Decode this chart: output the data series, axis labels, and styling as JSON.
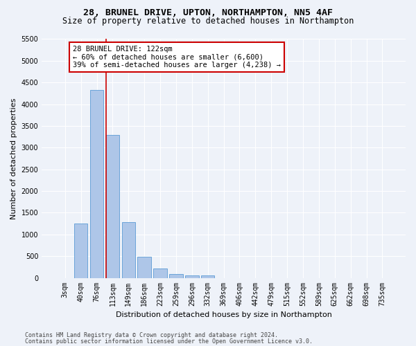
{
  "title_line1": "28, BRUNEL DRIVE, UPTON, NORTHAMPTON, NN5 4AF",
  "title_line2": "Size of property relative to detached houses in Northampton",
  "xlabel": "Distribution of detached houses by size in Northampton",
  "ylabel": "Number of detached properties",
  "bar_labels": [
    "3sqm",
    "40sqm",
    "76sqm",
    "113sqm",
    "149sqm",
    "186sqm",
    "223sqm",
    "259sqm",
    "296sqm",
    "332sqm",
    "369sqm",
    "406sqm",
    "442sqm",
    "479sqm",
    "515sqm",
    "552sqm",
    "589sqm",
    "625sqm",
    "662sqm",
    "698sqm",
    "735sqm"
  ],
  "bar_values": [
    0,
    1260,
    4330,
    3300,
    1280,
    490,
    220,
    90,
    60,
    50,
    0,
    0,
    0,
    0,
    0,
    0,
    0,
    0,
    0,
    0,
    0
  ],
  "bar_color": "#aec6e8",
  "bar_edgecolor": "#5b9bd5",
  "vline_color": "#cc0000",
  "vline_x_index": 3,
  "ylim": [
    0,
    5500
  ],
  "yticks": [
    0,
    500,
    1000,
    1500,
    2000,
    2500,
    3000,
    3500,
    4000,
    4500,
    5000,
    5500
  ],
  "annotation_text": "28 BRUNEL DRIVE: 122sqm\n← 60% of detached houses are smaller (6,600)\n39% of semi-detached houses are larger (4,238) →",
  "annotation_box_facecolor": "#ffffff",
  "annotation_box_edgecolor": "#cc0000",
  "footer_line1": "Contains HM Land Registry data © Crown copyright and database right 2024.",
  "footer_line2": "Contains public sector information licensed under the Open Government Licence v3.0.",
  "background_color": "#eef2f9",
  "plot_bg_color": "#eef2f9",
  "grid_color": "#ffffff",
  "title_fontsize": 9.5,
  "subtitle_fontsize": 8.5,
  "axis_label_fontsize": 8,
  "tick_fontsize": 7,
  "annotation_fontsize": 7.5,
  "footer_fontsize": 6
}
